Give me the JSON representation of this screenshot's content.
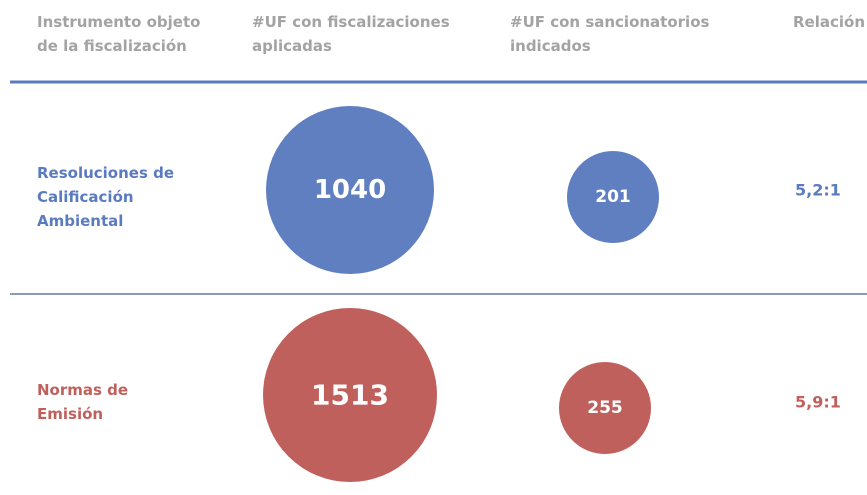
{
  "header": [
    [
      "Instrumento objeto",
      "de la fiscalización"
    ],
    [
      "#UF con fiscalizaciones",
      "aplicadas"
    ],
    [
      "#UF con sancionatorios",
      "indicados"
    ],
    [
      "Relación"
    ]
  ],
  "rows": [
    {
      "label": [
        "Resoluciones de",
        "Calificación",
        "Ambiental"
      ],
      "fiscalizaciones": "1040",
      "sancionatorios": "201",
      "relacion": "5,2:1"
    },
    {
      "label": [
        "Normas de",
        "Emisión"
      ],
      "fiscalizaciones": "1513",
      "sancionatorios": "255",
      "relacion": "5,9:1"
    }
  ]
}
